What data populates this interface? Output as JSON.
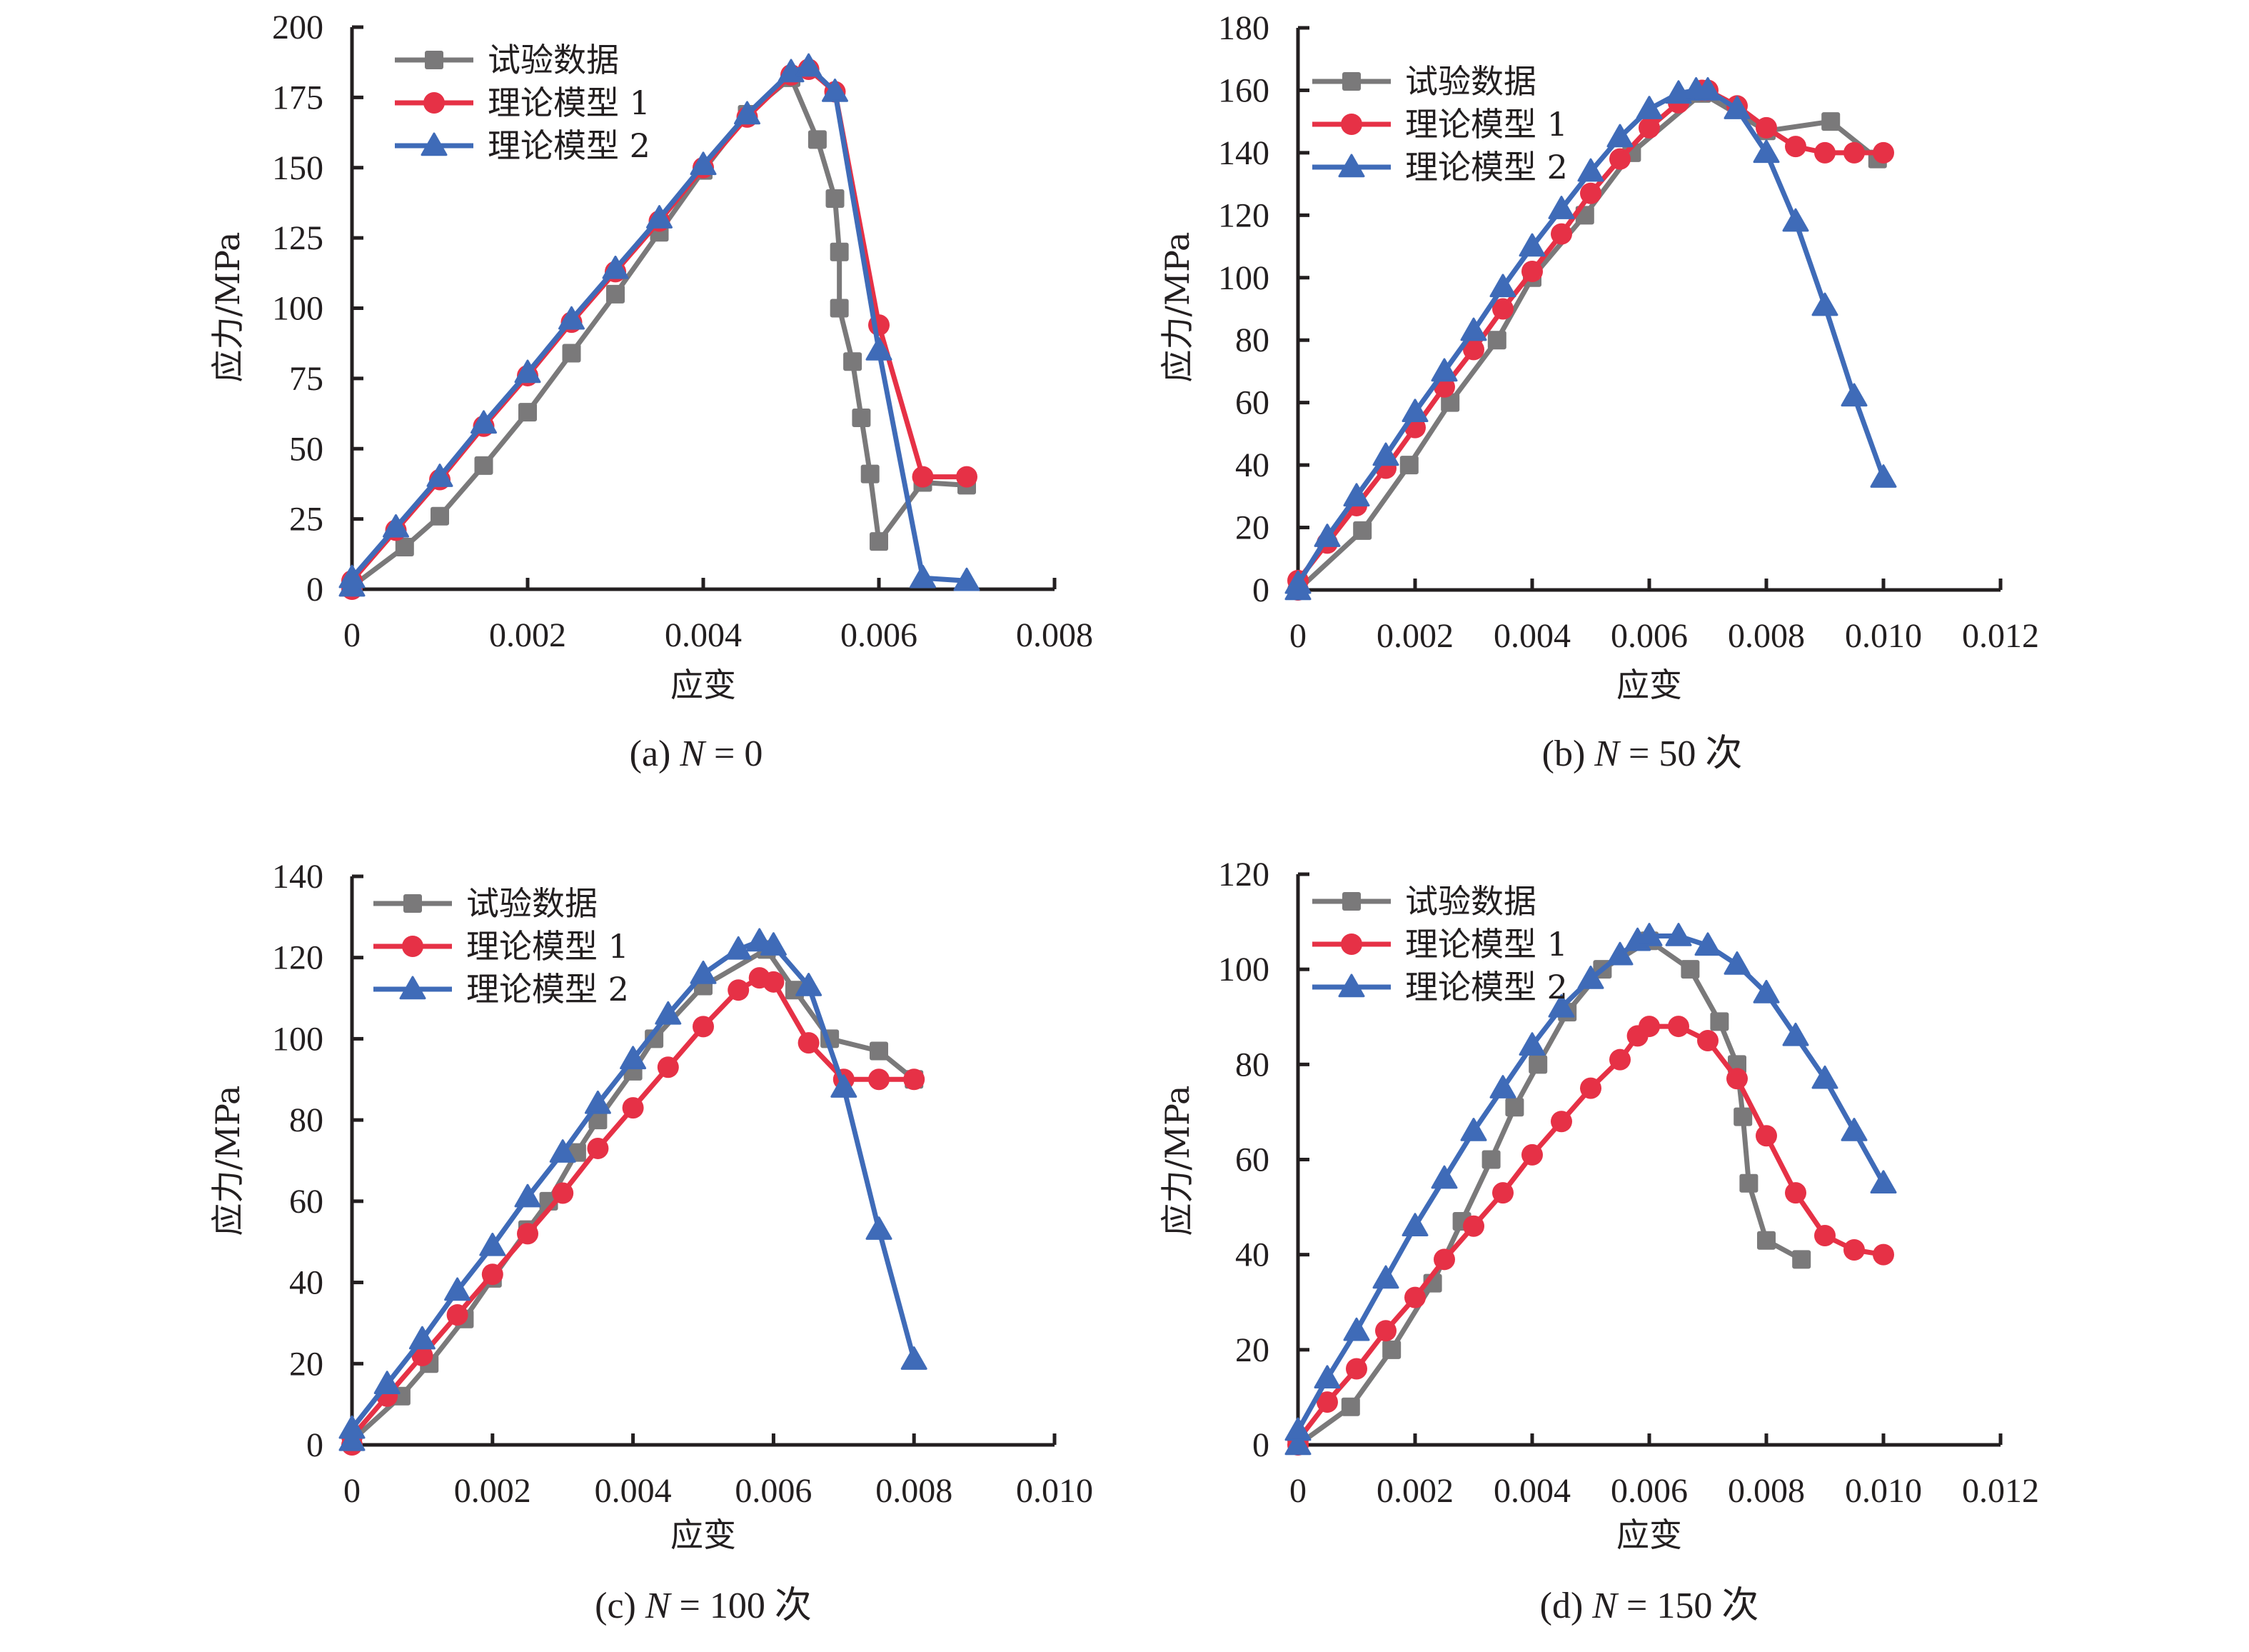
{
  "colors": {
    "test": "#7a797a",
    "model1": "#e63146",
    "model2": "#3f6bb8",
    "axis": "#231f20"
  },
  "chart_data": [
    {
      "type": "line",
      "panel": "a",
      "caption": {
        "prefix": "(a)",
        "var": "N",
        "eq": "=",
        "value": "0",
        "unit": ""
      },
      "xlabel": "应变",
      "ylabel": "应力/MPa",
      "xlim": [
        0,
        0.008
      ],
      "ylim": [
        0,
        200
      ],
      "xticks": [
        0,
        0.002,
        0.004,
        0.006,
        0.008
      ],
      "xtick_labels": [
        "0",
        "0.002",
        "0.004",
        "0.006",
        "0.008"
      ],
      "yticks": [
        0,
        25,
        50,
        75,
        100,
        125,
        150,
        175,
        200
      ],
      "ytick_labels": [
        "0",
        "25",
        "50",
        "75",
        "100",
        "125",
        "150",
        "175",
        "200"
      ],
      "legend_position": "top-left",
      "series": [
        {
          "name": "试验数据",
          "marker": "square",
          "color_key": "test",
          "x": [
            0,
            0.0006,
            0.001,
            0.0015,
            0.002,
            0.0025,
            0.003,
            0.0035,
            0.004,
            0.0045,
            0.005,
            0.0053,
            0.0055,
            0.00555,
            0.00555,
            0.0057,
            0.0058,
            0.0059,
            0.006,
            0.0065,
            0.007
          ],
          "y": [
            1,
            15,
            26,
            44,
            63,
            84,
            105,
            127,
            149,
            169,
            182,
            160,
            139,
            120,
            100,
            81,
            61,
            41,
            17,
            38,
            37
          ]
        },
        {
          "name": "理论模型 1",
          "marker": "circle",
          "color_key": "model1",
          "x": [
            0,
            0,
            0.0005,
            0.001,
            0.0015,
            0.002,
            0.0025,
            0.003,
            0.0035,
            0.004,
            0.0045,
            0.005,
            0.0052,
            0.0055,
            0.006,
            0.0065,
            0.007
          ],
          "y": [
            0,
            3,
            21,
            39,
            58,
            76,
            95,
            113,
            131,
            150,
            168,
            183,
            185,
            177,
            94,
            40,
            40
          ]
        },
        {
          "name": "理论模型 2",
          "marker": "triangle",
          "color_key": "model2",
          "x": [
            0,
            0,
            0.0005,
            0.001,
            0.0015,
            0.002,
            0.0025,
            0.003,
            0.0035,
            0.004,
            0.0045,
            0.005,
            0.0052,
            0.0055,
            0.006,
            0.0065,
            0.007
          ],
          "y": [
            1,
            4,
            22,
            40,
            59,
            77,
            96,
            114,
            132,
            151,
            169,
            184,
            186,
            177,
            85,
            4,
            3
          ]
        }
      ]
    },
    {
      "type": "line",
      "panel": "b",
      "caption": {
        "prefix": "(b)",
        "var": "N",
        "eq": "=",
        "value": "50",
        "unit": "次"
      },
      "xlabel": "应变",
      "ylabel": "应力/MPa",
      "xlim": [
        0,
        0.012
      ],
      "ylim": [
        0,
        180
      ],
      "xticks": [
        0,
        0.002,
        0.004,
        0.006,
        0.008,
        0.01,
        0.012
      ],
      "xtick_labels": [
        "0",
        "0.002",
        "0.004",
        "0.006",
        "0.008",
        "0.010",
        "0.012"
      ],
      "yticks": [
        0,
        20,
        40,
        60,
        80,
        100,
        120,
        140,
        160,
        180
      ],
      "ytick_labels": [
        "0",
        "20",
        "40",
        "60",
        "80",
        "100",
        "120",
        "140",
        "160",
        "180"
      ],
      "legend_position": "top-left",
      "series": [
        {
          "name": "试验数据",
          "marker": "square",
          "color_key": "test",
          "x": [
            0,
            0.0011,
            0.0019,
            0.0026,
            0.0034,
            0.004,
            0.0049,
            0.0057,
            0.0069,
            0.008,
            0.0091,
            0.0099
          ],
          "y": [
            0,
            19,
            40,
            60,
            80,
            100,
            120,
            140,
            159,
            147,
            150,
            138
          ]
        },
        {
          "name": "理论模型 1",
          "marker": "circle",
          "color_key": "model1",
          "x": [
            0,
            0,
            0.0005,
            0.001,
            0.0015,
            0.002,
            0.0025,
            0.003,
            0.0035,
            0.004,
            0.0045,
            0.005,
            0.0055,
            0.006,
            0.0065,
            0.0069,
            0.007,
            0.0075,
            0.008,
            0.0085,
            0.009,
            0.0095,
            0.01
          ],
          "y": [
            0,
            3,
            15,
            27,
            39,
            52,
            65,
            77,
            90,
            102,
            114,
            127,
            138,
            148,
            156,
            160,
            160,
            155,
            148,
            142,
            140,
            140,
            140
          ]
        },
        {
          "name": "理论模型 2",
          "marker": "triangle",
          "color_key": "model2",
          "x": [
            0,
            0,
            0.0005,
            0.001,
            0.0015,
            0.002,
            0.0025,
            0.003,
            0.0035,
            0.004,
            0.0045,
            0.005,
            0.0055,
            0.006,
            0.0065,
            0.0068,
            0.007,
            0.0075,
            0.008,
            0.0085,
            0.009,
            0.0095,
            0.01
          ],
          "y": [
            0,
            2,
            17,
            30,
            43,
            57,
            70,
            83,
            97,
            110,
            122,
            134,
            145,
            154,
            159,
            160,
            160,
            154,
            140,
            118,
            91,
            62,
            36
          ]
        }
      ]
    },
    {
      "type": "line",
      "panel": "c",
      "caption": {
        "prefix": "(c)",
        "var": "N",
        "eq": "=",
        "value": "100",
        "unit": "次"
      },
      "xlabel": "应变",
      "ylabel": "应力/MPa",
      "xlim": [
        0,
        0.01
      ],
      "ylim": [
        0,
        140
      ],
      "xticks": [
        0,
        0.002,
        0.004,
        0.006,
        0.008,
        0.01
      ],
      "xtick_labels": [
        "0",
        "0.002",
        "0.004",
        "0.006",
        "0.008",
        "0.010"
      ],
      "yticks": [
        0,
        20,
        40,
        60,
        80,
        100,
        120,
        140
      ],
      "ytick_labels": [
        "0",
        "20",
        "40",
        "60",
        "80",
        "100",
        "120",
        "140"
      ],
      "legend_position": "top-left",
      "series": [
        {
          "name": "试验数据",
          "marker": "square",
          "color_key": "test",
          "x": [
            0,
            0.0007,
            0.0011,
            0.0016,
            0.002,
            0.0025,
            0.0028,
            0.0032,
            0.0035,
            0.004,
            0.0043,
            0.005,
            0.0059,
            0.0063,
            0.0068,
            0.0075,
            0.008
          ],
          "y": [
            1,
            12,
            20,
            31,
            41,
            53,
            60,
            72,
            80,
            92,
            100,
            113,
            122,
            112,
            100,
            97,
            90
          ]
        },
        {
          "name": "理论模型 1",
          "marker": "circle",
          "color_key": "model1",
          "x": [
            0,
            0,
            0.0005,
            0.001,
            0.0015,
            0.002,
            0.0025,
            0.003,
            0.0035,
            0.004,
            0.0045,
            0.005,
            0.0055,
            0.0058,
            0.006,
            0.0065,
            0.007,
            0.0075,
            0.008
          ],
          "y": [
            0,
            2,
            12,
            22,
            32,
            42,
            52,
            62,
            73,
            83,
            93,
            103,
            112,
            115,
            114,
            99,
            90,
            90,
            90
          ]
        },
        {
          "name": "理论模型 2",
          "marker": "triangle",
          "color_key": "model2",
          "x": [
            0,
            0,
            0.0005,
            0.001,
            0.0015,
            0.002,
            0.0025,
            0.003,
            0.0035,
            0.004,
            0.0045,
            0.005,
            0.0055,
            0.0058,
            0.006,
            0.0065,
            0.007,
            0.0075,
            0.008
          ],
          "y": [
            1,
            4,
            15,
            26,
            38,
            49,
            61,
            72,
            84,
            95,
            106,
            116,
            122,
            124,
            123,
            113,
            88,
            53,
            21
          ]
        }
      ]
    },
    {
      "type": "line",
      "panel": "d",
      "caption": {
        "prefix": "(d)",
        "var": "N",
        "eq": "=",
        "value": "150",
        "unit": "次"
      },
      "xlabel": "应变",
      "ylabel": "应力/MPa",
      "xlim": [
        0,
        0.012
      ],
      "ylim": [
        0,
        120
      ],
      "xticks": [
        0,
        0.002,
        0.004,
        0.006,
        0.008,
        0.01,
        0.012
      ],
      "xtick_labels": [
        "0",
        "0.002",
        "0.004",
        "0.006",
        "0.008",
        "0.010",
        "0.012"
      ],
      "yticks": [
        0,
        20,
        40,
        60,
        80,
        100,
        120
      ],
      "ytick_labels": [
        "0",
        "20",
        "40",
        "60",
        "80",
        "100",
        "120"
      ],
      "legend_position": "top-left",
      "series": [
        {
          "name": "试验数据",
          "marker": "square",
          "color_key": "test",
          "x": [
            0,
            0.0009,
            0.0016,
            0.0023,
            0.0028,
            0.0033,
            0.0037,
            0.0041,
            0.0046,
            0.0052,
            0.006,
            0.0067,
            0.0072,
            0.0075,
            0.0076,
            0.0077,
            0.008,
            0.0086
          ],
          "y": [
            0,
            8,
            20,
            34,
            47,
            60,
            71,
            80,
            91,
            100,
            106,
            100,
            89,
            80,
            69,
            55,
            43,
            39
          ]
        },
        {
          "name": "理论模型 1",
          "marker": "circle",
          "color_key": "model1",
          "x": [
            0,
            0,
            0.0005,
            0.001,
            0.0015,
            0.002,
            0.0025,
            0.003,
            0.0035,
            0.004,
            0.0045,
            0.005,
            0.0055,
            0.0058,
            0.006,
            0.0065,
            0.007,
            0.0075,
            0.008,
            0.0085,
            0.009,
            0.0095,
            0.01
          ],
          "y": [
            0,
            1,
            9,
            16,
            24,
            31,
            39,
            46,
            53,
            61,
            68,
            75,
            81,
            86,
            88,
            88,
            85,
            77,
            65,
            53,
            44,
            41,
            40
          ]
        },
        {
          "name": "理论模型 2",
          "marker": "triangle",
          "color_key": "model2",
          "x": [
            0,
            0,
            0.0005,
            0.001,
            0.0015,
            0.002,
            0.0025,
            0.003,
            0.0035,
            0.004,
            0.0045,
            0.005,
            0.0055,
            0.0058,
            0.006,
            0.0065,
            0.007,
            0.0075,
            0.008,
            0.0085,
            0.009,
            0.0095,
            0.01
          ],
          "y": [
            0,
            3,
            14,
            24,
            35,
            46,
            56,
            66,
            75,
            84,
            92,
            98,
            103,
            106,
            107,
            107,
            105,
            101,
            95,
            86,
            77,
            66,
            55
          ]
        }
      ]
    }
  ]
}
